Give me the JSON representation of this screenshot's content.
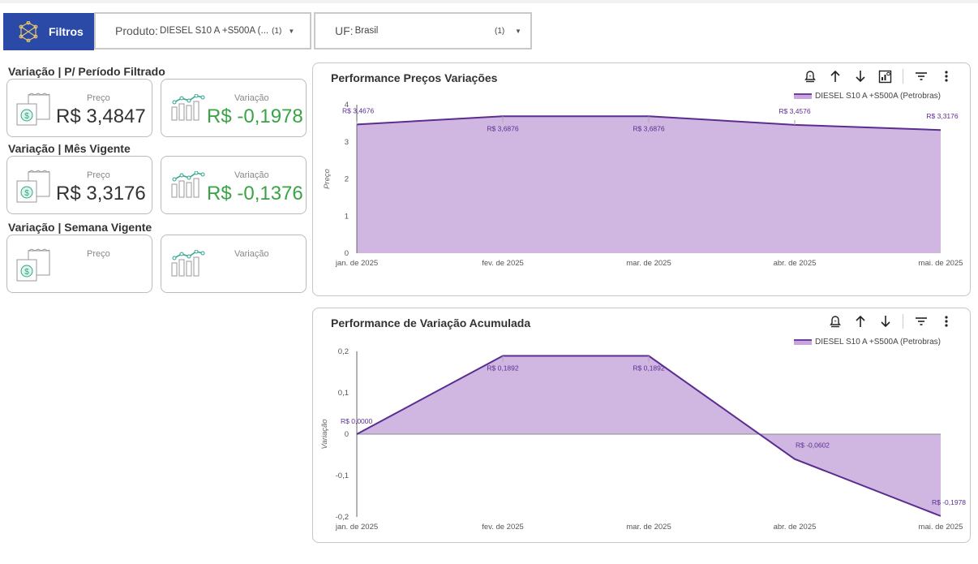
{
  "filters": {
    "button_label": "Filtros",
    "product": {
      "key": "Produto:",
      "value": "DIESEL S10 A +S500A (...",
      "count": "(1)"
    },
    "uf": {
      "key": "UF:",
      "value": "Brasil",
      "count": "(1)"
    }
  },
  "sections": [
    {
      "title": "Variação | P/ Período Filtrado",
      "price_label": "Preço",
      "price_value": "R$ 3,4847",
      "var_label": "Variação",
      "var_value": "R$ -0,1978"
    },
    {
      "title": "Variação | Mês Vigente",
      "price_label": "Preço",
      "price_value": "R$ 3,3176",
      "var_label": "Variação",
      "var_value": "R$ -0,1376"
    },
    {
      "title": "Variação | Semana Vigente",
      "price_label": "Preço",
      "price_value": "",
      "var_label": "Variação",
      "var_value": ""
    }
  ],
  "colors": {
    "accent": "#2b4aa8",
    "area_fill": "#cdb3e0",
    "line": "#5b2d91",
    "positive_green": "#3aa346",
    "icon_teal": "#2ca58d"
  },
  "chart_data": [
    {
      "type": "area",
      "title": "Performance Preços Variações",
      "ylabel": "Preço",
      "xlabel": "",
      "x": [
        "jan. de 2025",
        "fev. de 2025",
        "mar. de 2025",
        "abr. de 2025",
        "mai. de 2025"
      ],
      "series": [
        {
          "name": "DIESEL S10 A +S500A (Petrobras)",
          "values": [
            3.4676,
            3.6876,
            3.6876,
            3.4576,
            3.3176
          ],
          "labels": [
            "R$ 3,4676",
            "R$ 3,6876",
            "R$ 3,6876",
            "R$ 3,4576",
            "R$ 3,3176"
          ]
        }
      ],
      "ylim": [
        0,
        4
      ],
      "yticks": [
        "0",
        "1",
        "2",
        "3",
        "4"
      ],
      "legend": "top-right",
      "grid": false
    },
    {
      "type": "area",
      "title": "Performance de Variação Acumulada",
      "ylabel": "Variação",
      "xlabel": "",
      "x": [
        "jan. de 2025",
        "fev. de 2025",
        "mar. de 2025",
        "abr. de 2025",
        "mai. de 2025"
      ],
      "series": [
        {
          "name": "DIESEL S10 A +S500A (Petrobras)",
          "values": [
            0.0,
            0.1892,
            0.1892,
            -0.0602,
            -0.1978
          ],
          "labels": [
            "R$ 0,0000",
            "R$ 0,1892",
            "R$ 0,1892",
            "R$ -0,0602",
            "R$ -0,1978"
          ]
        }
      ],
      "ylim": [
        -0.2,
        0.2
      ],
      "yticks": [
        "-0,2",
        "-0,1",
        "0",
        "0,1",
        "0,2"
      ],
      "legend": "top-right",
      "grid": false
    }
  ]
}
